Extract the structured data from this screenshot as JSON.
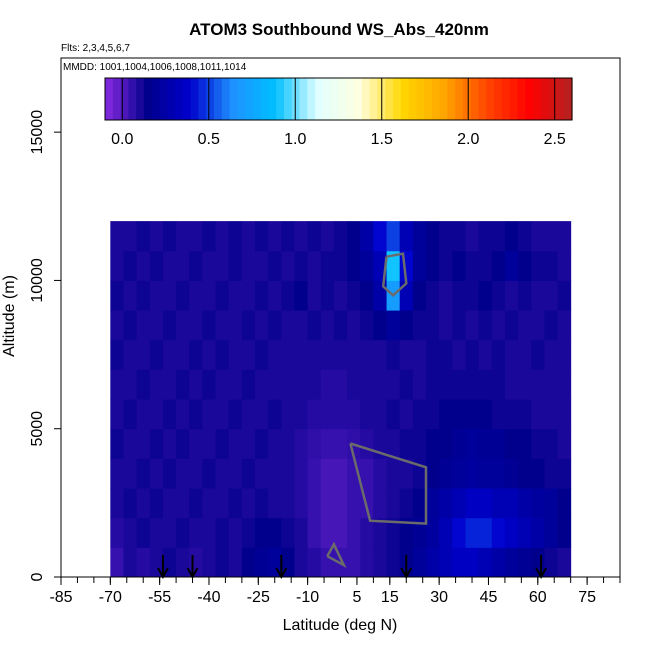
{
  "chart_data": {
    "type": "heatmap",
    "title": "ATOM3 Southbound WS_Abs_420nm",
    "subtitle_flights": "Flts: 2,3,4,5,6,7",
    "subtitle_dates": "MMDD: 1001,1004,1006,1008,1011,1014",
    "xlabel": "Latitude (deg N)",
    "ylabel": "Altitude (m)",
    "xlim": [
      -85,
      85
    ],
    "ylim": [
      0,
      17500
    ],
    "x_ticks": [
      -85,
      -70,
      -55,
      -40,
      -25,
      -10,
      5,
      15,
      30,
      45,
      60,
      75
    ],
    "x_minor_ticks": [
      -85,
      -80,
      -75,
      -70,
      -65,
      -60,
      -55,
      -50,
      -45,
      -40,
      -35,
      -30,
      -25,
      -20,
      -15,
      -10,
      -5,
      0,
      5,
      10,
      15,
      20,
      25,
      30,
      35,
      40,
      45,
      50,
      55,
      60,
      65,
      70,
      75,
      80,
      85
    ],
    "y_ticks": [
      0,
      5000,
      10000,
      15000
    ],
    "colorbar": {
      "range": [
        -0.1,
        2.6
      ],
      "ticks": [
        0.0,
        0.5,
        1.0,
        1.5,
        2.0,
        2.5
      ],
      "tick_labels": [
        "0.0",
        "0.5",
        "1.0",
        "1.5",
        "2.0",
        "2.5"
      ],
      "colors": [
        "#8a2be2",
        "#00008b",
        "#0000cd",
        "#1e90ff",
        "#00bfff",
        "#e0ffff",
        "#ffffe0",
        "#ffd700",
        "#ffa500",
        "#ff4500",
        "#ff0000",
        "#b22222"
      ]
    },
    "flight_arrows_lat": [
      -54,
      -45,
      -18,
      20,
      61
    ],
    "field": {
      "description_values": "approximate absorption values over latitude/altitude",
      "latitude_edges": [
        -70,
        -66,
        -62,
        -58,
        -54,
        -50,
        -46,
        -42,
        -38,
        -34,
        -30,
        -26,
        -22,
        -18,
        -14,
        -10,
        -6,
        -2,
        2,
        6,
        10,
        14,
        18,
        22,
        26,
        30,
        34,
        38,
        42,
        46,
        50,
        54,
        58,
        62,
        66,
        70
      ],
      "altitude_edges": [
        0,
        1000,
        2000,
        3000,
        4000,
        5000,
        6000,
        7000,
        8000,
        9000,
        10000,
        11000,
        12000
      ],
      "values": [
        [
          0.05,
          0.1,
          0.08,
          0.1,
          0.12,
          0.1,
          0.08,
          0.1,
          0.12,
          0.1,
          0.15,
          0.18,
          0.2,
          0.15,
          0.1,
          0.08,
          0.05,
          0.05,
          0.05,
          0.08,
          0.1,
          0.12,
          0.15,
          0.2,
          0.25,
          0.3,
          0.35,
          0.35,
          0.3,
          0.25,
          0.2,
          0.18,
          0.15,
          0.12,
          0.1
        ],
        [
          0.08,
          0.1,
          0.12,
          0.1,
          0.1,
          0.12,
          0.1,
          0.1,
          0.12,
          0.1,
          0.12,
          0.15,
          0.15,
          0.12,
          0.1,
          0.05,
          0.02,
          0.02,
          0.05,
          0.08,
          0.1,
          0.12,
          0.15,
          0.18,
          0.22,
          0.3,
          0.4,
          0.45,
          0.45,
          0.4,
          0.35,
          0.3,
          0.25,
          0.2,
          0.15
        ],
        [
          0.1,
          0.12,
          0.1,
          0.12,
          0.1,
          0.1,
          0.12,
          0.1,
          0.1,
          0.12,
          0.1,
          0.12,
          0.1,
          0.1,
          0.08,
          0.05,
          0.02,
          0.02,
          0.05,
          0.05,
          0.08,
          0.1,
          0.12,
          0.15,
          0.2,
          0.25,
          0.3,
          0.35,
          0.35,
          0.3,
          0.3,
          0.25,
          0.22,
          0.2,
          0.15
        ],
        [
          0.1,
          0.1,
          0.12,
          0.1,
          0.12,
          0.1,
          0.1,
          0.12,
          0.1,
          0.1,
          0.12,
          0.1,
          0.1,
          0.1,
          0.08,
          0.05,
          0.02,
          0.02,
          0.05,
          0.05,
          0.08,
          0.1,
          0.1,
          0.12,
          0.15,
          0.18,
          0.2,
          0.22,
          0.2,
          0.2,
          0.18,
          0.15,
          0.15,
          0.12,
          0.12
        ],
        [
          0.12,
          0.1,
          0.1,
          0.12,
          0.1,
          0.12,
          0.1,
          0.1,
          0.12,
          0.1,
          0.1,
          0.12,
          0.1,
          0.1,
          0.08,
          0.06,
          0.05,
          0.05,
          0.06,
          0.08,
          0.1,
          0.1,
          0.12,
          0.12,
          0.15,
          0.15,
          0.18,
          0.2,
          0.18,
          0.18,
          0.15,
          0.15,
          0.12,
          0.12,
          0.1
        ],
        [
          0.1,
          0.12,
          0.1,
          0.1,
          0.12,
          0.1,
          0.12,
          0.1,
          0.1,
          0.12,
          0.1,
          0.1,
          0.12,
          0.1,
          0.1,
          0.08,
          0.08,
          0.08,
          0.08,
          0.1,
          0.1,
          0.12,
          0.1,
          0.12,
          0.12,
          0.15,
          0.15,
          0.15,
          0.15,
          0.12,
          0.12,
          0.12,
          0.1,
          0.1,
          0.1
        ],
        [
          0.1,
          0.1,
          0.12,
          0.1,
          0.1,
          0.12,
          0.1,
          0.12,
          0.1,
          0.1,
          0.12,
          0.1,
          0.1,
          0.1,
          0.1,
          0.1,
          0.08,
          0.08,
          0.1,
          0.1,
          0.1,
          0.1,
          0.12,
          0.1,
          0.12,
          0.12,
          0.12,
          0.12,
          0.12,
          0.12,
          0.1,
          0.1,
          0.1,
          0.1,
          0.1
        ],
        [
          0.12,
          0.1,
          0.1,
          0.12,
          0.1,
          0.1,
          0.12,
          0.1,
          0.12,
          0.1,
          0.1,
          0.12,
          0.1,
          0.1,
          0.1,
          0.1,
          0.1,
          0.1,
          0.1,
          0.1,
          0.1,
          0.12,
          0.1,
          0.1,
          0.12,
          0.12,
          0.1,
          0.12,
          0.1,
          0.12,
          0.1,
          0.1,
          0.12,
          0.1,
          0.1
        ],
        [
          0.1,
          0.12,
          0.1,
          0.1,
          0.12,
          0.1,
          0.1,
          0.12,
          0.1,
          0.1,
          0.12,
          0.1,
          0.12,
          0.1,
          0.1,
          0.12,
          0.1,
          0.12,
          0.1,
          0.12,
          0.15,
          0.2,
          0.15,
          0.12,
          0.12,
          0.1,
          0.12,
          0.1,
          0.12,
          0.1,
          0.12,
          0.1,
          0.1,
          0.12,
          0.1
        ],
        [
          0.12,
          0.1,
          0.12,
          0.1,
          0.1,
          0.12,
          0.1,
          0.1,
          0.12,
          0.1,
          0.1,
          0.12,
          0.1,
          0.12,
          0.15,
          0.1,
          0.12,
          0.1,
          0.12,
          0.15,
          0.25,
          0.7,
          0.3,
          0.15,
          0.12,
          0.1,
          0.12,
          0.12,
          0.15,
          0.12,
          0.1,
          0.12,
          0.1,
          0.1,
          0.12
        ],
        [
          0.1,
          0.12,
          0.1,
          0.12,
          0.1,
          0.1,
          0.12,
          0.1,
          0.1,
          0.12,
          0.1,
          0.1,
          0.12,
          0.1,
          0.12,
          0.1,
          0.12,
          0.12,
          0.15,
          0.2,
          0.3,
          0.9,
          0.4,
          0.2,
          0.15,
          0.12,
          0.15,
          0.12,
          0.12,
          0.15,
          0.2,
          0.15,
          0.12,
          0.12,
          0.1
        ],
        [
          0.1,
          0.1,
          0.12,
          0.1,
          0.12,
          0.1,
          0.1,
          0.12,
          0.1,
          0.12,
          0.1,
          0.12,
          0.1,
          0.12,
          0.1,
          0.12,
          0.1,
          0.12,
          0.15,
          0.25,
          0.4,
          0.5,
          0.3,
          0.2,
          0.15,
          0.12,
          0.12,
          0.1,
          0.12,
          0.12,
          0.15,
          0.12,
          0.1,
          0.1,
          0.1
        ]
      ]
    }
  }
}
